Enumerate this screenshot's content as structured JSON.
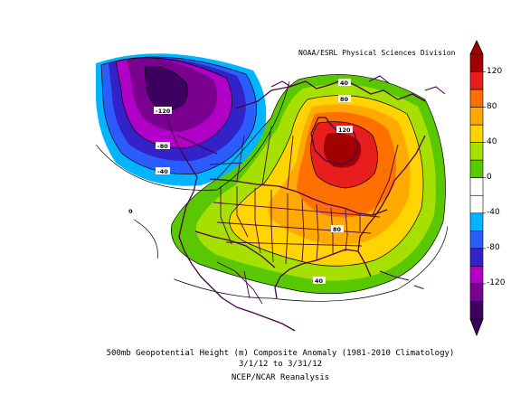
{
  "credit": "NOAA/ESRL Physical Sciences Division",
  "caption": {
    "line1": "500mb Geopotential Height (m) Composite Anomaly (1981-2010 Climatology)",
    "line2": "3/1/12  to 3/31/12",
    "line3": "NCEP/NCAR Reanalysis"
  },
  "colorbar": {
    "labels": [
      "120",
      "80",
      "40",
      "0",
      "-40",
      "-80",
      "-120"
    ],
    "colors": [
      "#a00000",
      "#e81e1e",
      "#ff7000",
      "#ffaa00",
      "#ffd400",
      "#a6e000",
      "#5ac800",
      "#ffffff",
      "#ffffff",
      "#00b4ff",
      "#2a5cff",
      "#3222c8",
      "#b000c8",
      "#7a0090",
      "#3c0060"
    ]
  },
  "contour_labels": {
    "pos_40_a": "40",
    "pos_80_a": "80",
    "pos_120": "120",
    "pos_80_b": "80",
    "pos_40_b": "40",
    "neg_120": "-120",
    "neg_80": "-80",
    "neg_40": "-40",
    "zero": "0"
  }
}
